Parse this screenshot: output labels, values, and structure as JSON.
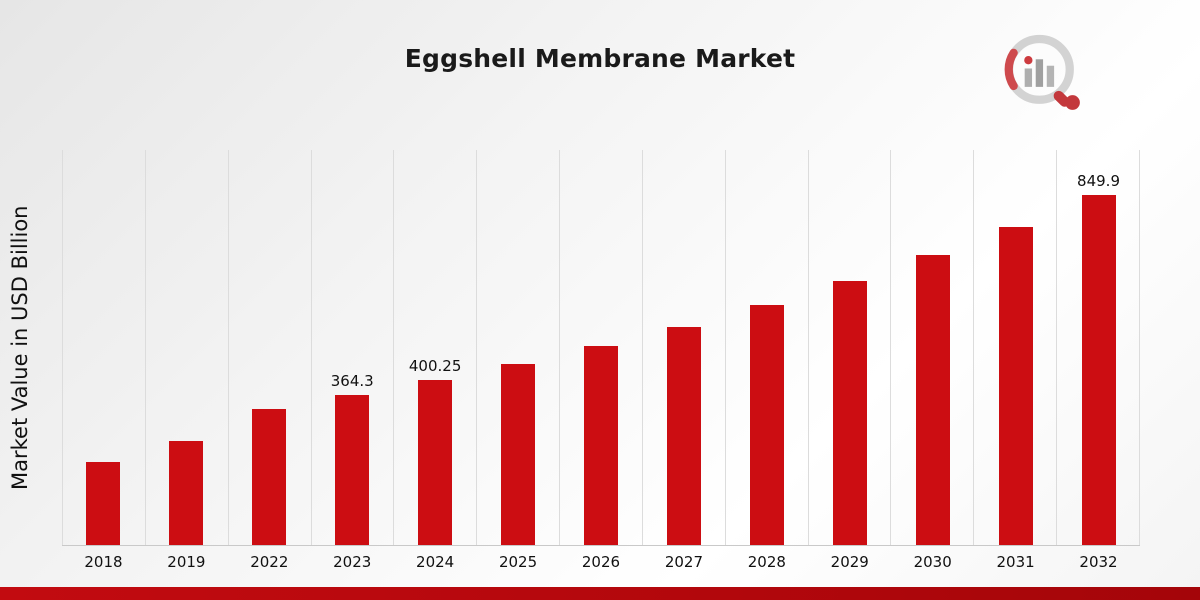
{
  "title": "Eggshell Membrane Market",
  "y_axis_label": "Market Value in USD Billion",
  "colors": {
    "bar": "#cc0d12",
    "gridline": "#dcdcdc",
    "footer_accent": "#b2070c",
    "logo_gray": "#c4c4c4",
    "logo_red": "#b5070c"
  },
  "chart_data": {
    "type": "bar",
    "title": "Eggshell Membrane Market",
    "xlabel": "",
    "ylabel": "Market Value in USD Billion",
    "categories": [
      "2018",
      "2019",
      "2022",
      "2023",
      "2024",
      "2025",
      "2026",
      "2027",
      "2028",
      "2029",
      "2030",
      "2031",
      "2032"
    ],
    "values": [
      202,
      254,
      331.6,
      364.3,
      400.25,
      439.8,
      483.2,
      530.9,
      583.3,
      640.8,
      704.1,
      773.6,
      849.9
    ],
    "data_labels": [
      "",
      "",
      "",
      "364.3",
      "400.25",
      "",
      "",
      "",
      "",
      "",
      "",
      "",
      "849.9"
    ],
    "ylim": [
      0,
      960
    ],
    "grid": "vertical",
    "legend": "none",
    "bar_color": "#cc0d12"
  }
}
